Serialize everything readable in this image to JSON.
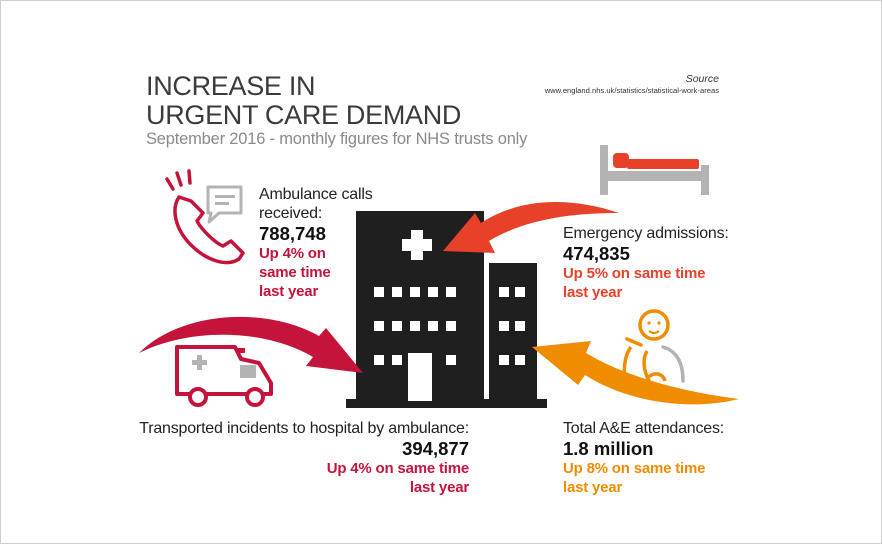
{
  "title_line1": "INCREASE IN",
  "title_line2": "URGENT CARE DEMAND",
  "subtitle": "September 2016 - monthly figures for NHS trusts only",
  "source": {
    "label": "Source",
    "url": "www.england.nhs.uk/statistics/statistical-work-areas"
  },
  "ambulance_calls": {
    "label_line1": "Ambulance calls",
    "label_line2": "received:",
    "value": "788,748",
    "change_line1": "Up 4% on",
    "change_line2": "same time",
    "change_line3": "last year"
  },
  "emergency_admissions": {
    "label": "Emergency admissions:",
    "value": "474,835",
    "change_line1": "Up 5% on same time",
    "change_line2": "last year"
  },
  "transported_incidents": {
    "label": "Transported incidents to hospital by ambulance:",
    "value": "394,877",
    "change_line1": "Up 4% on same time",
    "change_line2": "last year"
  },
  "ae_attendances": {
    "label": "Total A&E attendances:",
    "value": "1.8 million",
    "change_line1": "Up 8% on same time",
    "change_line2": "last year"
  },
  "colors": {
    "crimson": "#c4143c",
    "red_orange": "#e8412a",
    "amber": "#f08c00",
    "building": "#1f1f1f",
    "grey_icon": "#b3b3b3"
  },
  "icons": [
    "phone-icon",
    "speech-bubble-icon",
    "ambulance-icon",
    "hospital-building-icon",
    "hospital-bed-icon",
    "patient-icon",
    "arrow-icon"
  ]
}
